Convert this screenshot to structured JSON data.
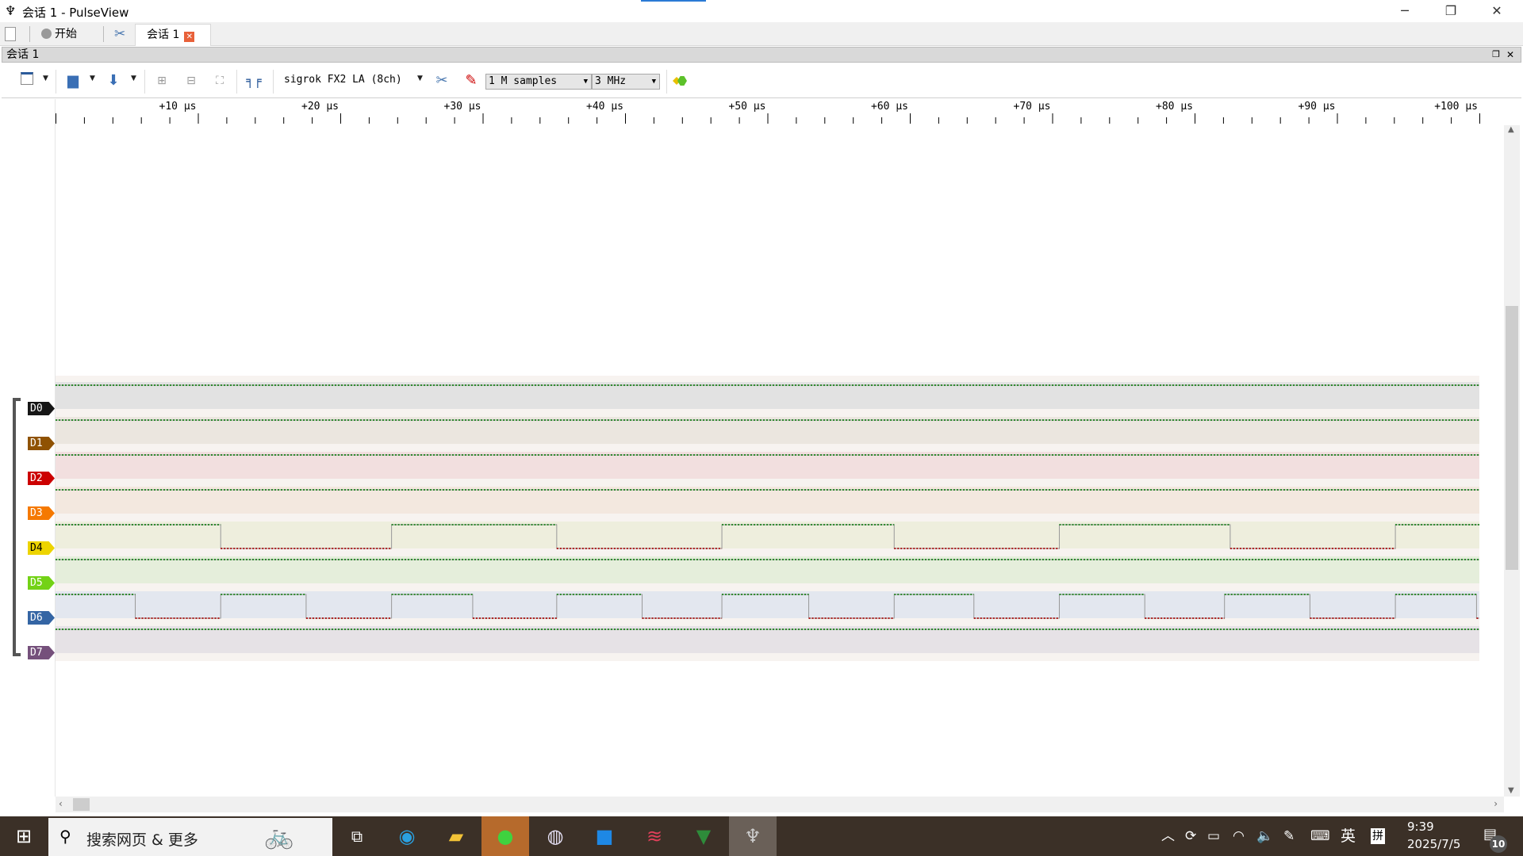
{
  "window": {
    "title": "会话 1 - PulseView",
    "minimize": "─",
    "maximize": "❐",
    "close": "✕"
  },
  "tabs": {
    "start_label": "开始",
    "session_tab": "会话 1"
  },
  "session": {
    "header": "会话 1"
  },
  "toolbar": {
    "device": "sigrok FX2 LA (8ch)",
    "samples": "1 M samples",
    "samplerate": "3 MHz"
  },
  "ruler": {
    "unit": "µs",
    "labels": [
      "+10 µs",
      "+20 µs",
      "+30 µs",
      "+40 µs",
      "+50 µs",
      "+60 µs",
      "+70 µs",
      "+80 µs",
      "+90 µs",
      "+100 µs"
    ]
  },
  "channels": [
    {
      "name": "D0",
      "color": "#161616",
      "bg": "#e2e2e2",
      "initial": 1,
      "edges": []
    },
    {
      "name": "D1",
      "color": "#8f5202",
      "bg": "#ebe6df",
      "initial": 1,
      "edges": []
    },
    {
      "name": "D2",
      "color": "#cc0000",
      "bg": "#f2dfdf",
      "initial": 1,
      "edges": []
    },
    {
      "name": "D3",
      "color": "#f57900",
      "bg": "#f3e8df",
      "initial": 1,
      "edges": []
    },
    {
      "name": "D4",
      "color": "#edd400",
      "bg": "#eeeedd",
      "initial": 1,
      "edges": [
        11.6,
        23.6,
        35.2,
        46.8,
        58.9,
        70.5,
        82.5,
        94.1
      ]
    },
    {
      "name": "D5",
      "color": "#73d216",
      "bg": "#e5eedb",
      "initial": 1,
      "edges": []
    },
    {
      "name": "D6",
      "color": "#3465a4",
      "bg": "#e3e7ef",
      "initial": 1,
      "edges": [
        5.6,
        11.6,
        17.6,
        23.6,
        29.3,
        35.2,
        41.2,
        46.8,
        52.9,
        58.9,
        64.5,
        70.5,
        76.5,
        82.1,
        88.1,
        94.1,
        99.8
      ]
    },
    {
      "name": "D7",
      "color": "#75507b",
      "bg": "#e6e2e6",
      "initial": 1,
      "edges": []
    }
  ],
  "view": {
    "start_us": 0,
    "end_us": 100
  },
  "taskbar": {
    "search_placeholder": "搜索网页 & 更多",
    "ime_lang": "英",
    "ime_mode": "拼",
    "time": "9:39",
    "date": "2025/7/5",
    "notifications": "10"
  }
}
